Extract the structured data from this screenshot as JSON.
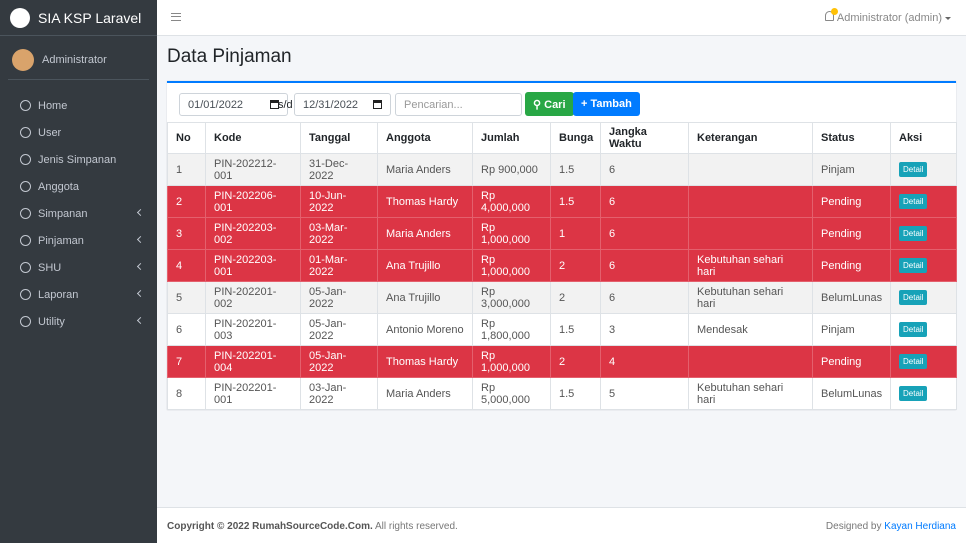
{
  "sidebar": {
    "brand": "SIA KSP Laravel",
    "user": "Administrator",
    "menu": [
      {
        "label": "Home",
        "has_children": false
      },
      {
        "label": "User",
        "has_children": false
      },
      {
        "label": "Jenis Simpanan",
        "has_children": false
      },
      {
        "label": "Anggota",
        "has_children": false
      },
      {
        "label": "Simpanan",
        "has_children": true
      },
      {
        "label": "Pinjaman",
        "has_children": true
      },
      {
        "label": "SHU",
        "has_children": true
      },
      {
        "label": "Laporan",
        "has_children": true
      },
      {
        "label": "Utility",
        "has_children": true
      }
    ]
  },
  "navbar": {
    "user": "Administrator (admin)"
  },
  "content": {
    "title": "Data Pinjaman",
    "filter": {
      "date_from": "01/01/2022",
      "separator": "s/d",
      "date_to": "12/31/2022",
      "search_placeholder": "Pencarian...",
      "search_button": "Cari",
      "add_button": "Tambah"
    },
    "table": {
      "headers": [
        "No",
        "Kode",
        "Tanggal",
        "Anggota",
        "Jumlah",
        "Bunga",
        "Jangka Waktu",
        "Keterangan",
        "Status",
        "Aksi"
      ],
      "action_label": "Detail",
      "rows": [
        {
          "style": "default",
          "cells": [
            "1",
            "PIN-202212-001",
            "31-Dec-2022",
            "Maria Anders",
            "Rp 900,000",
            "1.5",
            "6",
            "",
            "Pinjam"
          ]
        },
        {
          "style": "danger",
          "cells": [
            "2",
            "PIN-202206-001",
            "10-Jun-2022",
            "Thomas Hardy",
            "Rp 4,000,000",
            "1.5",
            "6",
            "",
            "Pending"
          ]
        },
        {
          "style": "danger",
          "cells": [
            "3",
            "PIN-202203-002",
            "03-Mar-2022",
            "Maria Anders",
            "Rp 1,000,000",
            "1",
            "6",
            "",
            "Pending"
          ]
        },
        {
          "style": "danger",
          "cells": [
            "4",
            "PIN-202203-001",
            "01-Mar-2022",
            "Ana Trujillo",
            "Rp 1,000,000",
            "2",
            "6",
            "Kebutuhan sehari hari",
            "Pending"
          ]
        },
        {
          "style": "default",
          "cells": [
            "5",
            "PIN-202201-002",
            "05-Jan-2022",
            "Ana Trujillo",
            "Rp 3,000,000",
            "2",
            "6",
            "Kebutuhan sehari hari",
            "BelumLunas"
          ]
        },
        {
          "style": "default",
          "cells": [
            "6",
            "PIN-202201-003",
            "05-Jan-2022",
            "Antonio Moreno",
            "Rp 1,800,000",
            "1.5",
            "3",
            "Mendesak",
            "Pinjam"
          ]
        },
        {
          "style": "danger",
          "cells": [
            "7",
            "PIN-202201-004",
            "05-Jan-2022",
            "Thomas Hardy",
            "Rp 1,000,000",
            "2",
            "4",
            "",
            "Pending"
          ]
        },
        {
          "style": "default",
          "cells": [
            "8",
            "PIN-202201-001",
            "03-Jan-2022",
            "Maria Anders",
            "Rp 5,000,000",
            "1.5",
            "5",
            "Kebutuhan sehari hari",
            "BelumLunas"
          ]
        }
      ]
    }
  },
  "footer": {
    "copyright": "Copyright © 2022 RumahSourceCode.Com.",
    "rights": "All rights reserved.",
    "designed_by": "Designed by",
    "author": "Kayan Herdiana"
  }
}
